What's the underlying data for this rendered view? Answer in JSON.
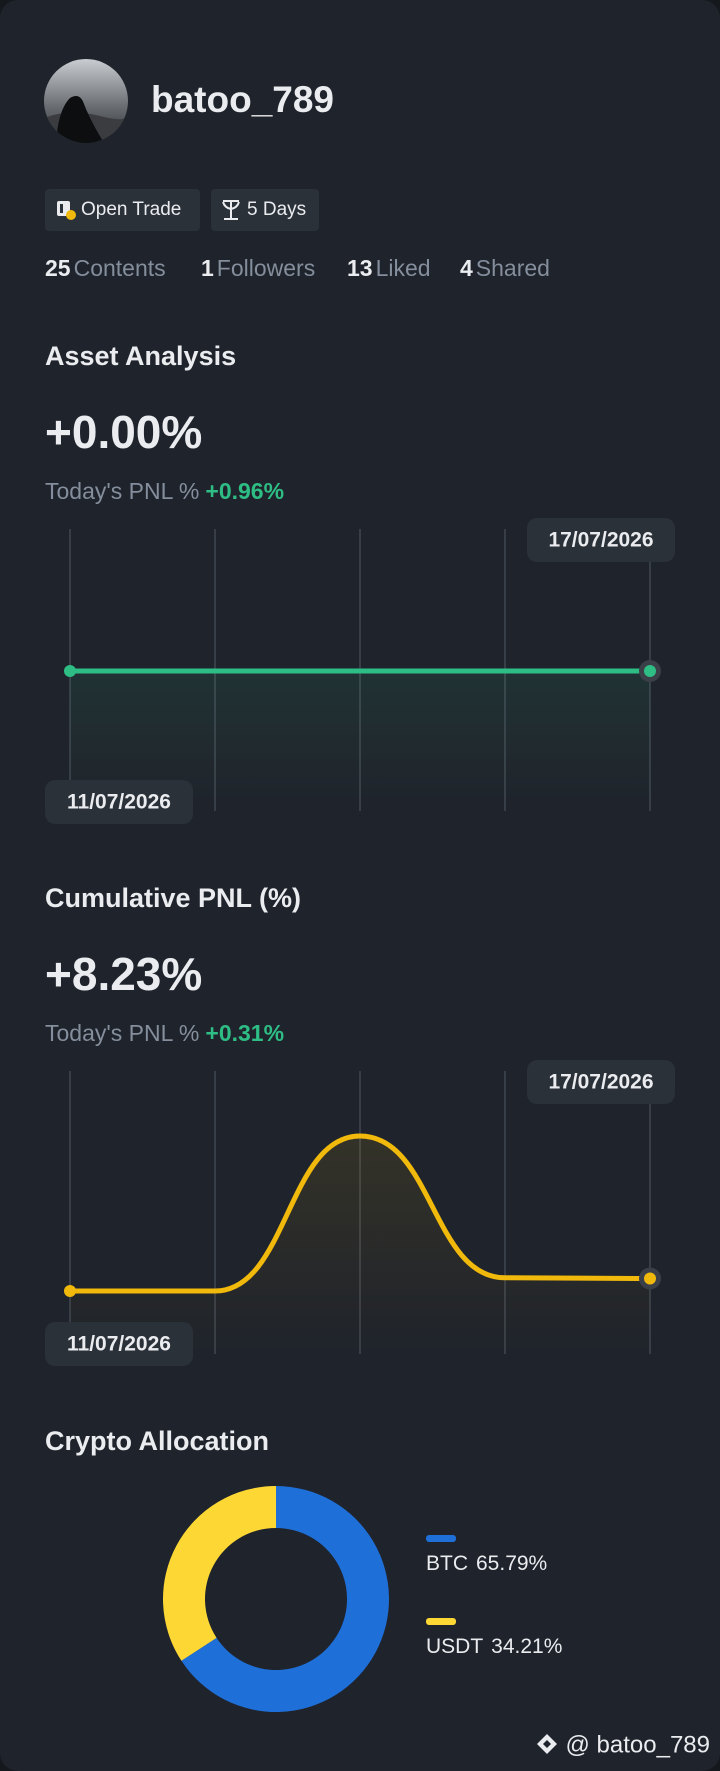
{
  "profile": {
    "username": "batoo_789"
  },
  "badges": [
    "Open Trade",
    "5 Days"
  ],
  "stats": [
    {
      "count": 25,
      "label": "Contents"
    },
    {
      "count": 1,
      "label": "Followers"
    },
    {
      "count": 13,
      "label": "Liked"
    },
    {
      "count": 4,
      "label": "Shared"
    }
  ],
  "chart_data": [
    {
      "type": "line",
      "title": "Asset Analysis",
      "headline": "+0.00%",
      "subtitle": "Today's PNL %",
      "subtitle_value": "+0.96%",
      "categories": [
        "11/07/2026",
        null,
        null,
        null,
        "17/07/2026"
      ],
      "values": [
        0,
        0,
        0,
        0,
        0
      ],
      "color": "#2ebd85"
    },
    {
      "type": "line",
      "title": "Cumulative PNL (%)",
      "headline": "+8.23%",
      "subtitle": "Today's PNL %",
      "subtitle_value": "+0.31%",
      "categories": [
        "11/07/2026",
        null,
        null,
        null,
        "17/07/2026"
      ],
      "values": [
        7.9,
        7.9,
        12.0,
        8.25,
        8.23
      ],
      "color": "#f0b90b"
    },
    {
      "type": "donut",
      "title": "Crypto Allocation",
      "categories": [
        "BTC",
        "USDT"
      ],
      "values": [
        65.79,
        34.21
      ],
      "value_labels": [
        "65.79%",
        "34.21%"
      ],
      "colors": [
        "#1f6fd8",
        "#fdd835"
      ]
    }
  ],
  "watermark": "@ batoo_789"
}
